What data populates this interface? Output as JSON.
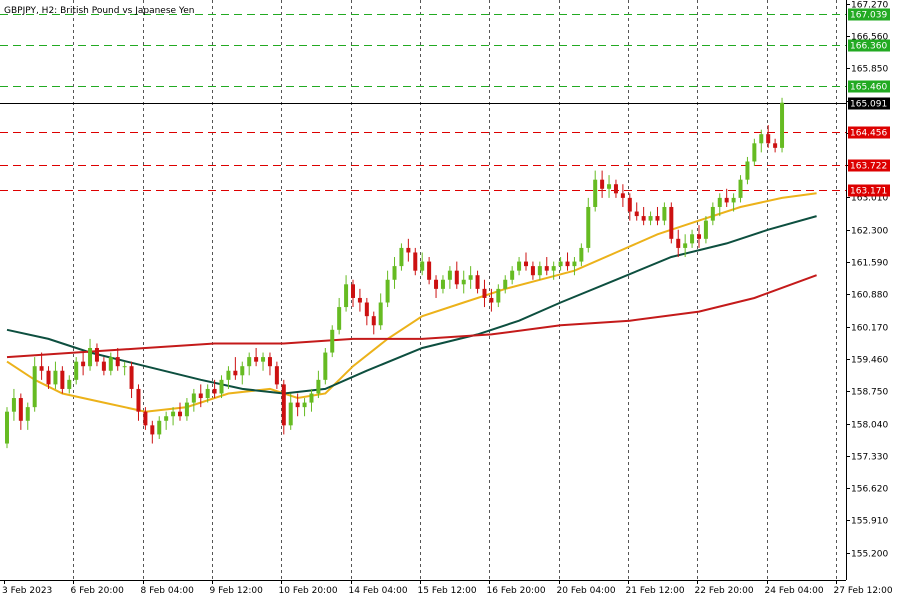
{
  "chart_data": {
    "type": "candlestick",
    "title": "GBPJPY, H2:  British Pound vs Japanese Yen",
    "y_axis": {
      "ticks": [
        "167.270",
        "166.560",
        "165.850",
        "165.140",
        "164.430",
        "163.720",
        "163.010",
        "162.300",
        "161.590",
        "160.880",
        "160.170",
        "159.460",
        "158.750",
        "158.040",
        "157.330",
        "156.620",
        "155.910",
        "155.200"
      ],
      "ylim": [
        154.6,
        167.35
      ]
    },
    "x_axis": {
      "ticks": [
        "3 Feb 2023",
        "6 Feb 20:00",
        "8 Feb 04:00",
        "9 Feb 12:00",
        "10 Feb 20:00",
        "14 Feb 04:00",
        "15 Feb 12:00",
        "16 Feb 20:00",
        "20 Feb 04:00",
        "21 Feb 12:00",
        "22 Feb 20:00",
        "24 Feb 04:00",
        "27 Feb 12:00"
      ]
    },
    "price_lines": [
      {
        "value": 167.039,
        "label": "167.039",
        "color": "#22aa22",
        "style": "dashed"
      },
      {
        "value": 166.36,
        "label": "166.360",
        "color": "#22aa22",
        "style": "dashed"
      },
      {
        "value": 165.46,
        "label": "165.460",
        "color": "#22aa22",
        "style": "dashed"
      },
      {
        "value": 165.091,
        "label": "165.091",
        "color": "#000000",
        "style": "solid"
      },
      {
        "value": 164.456,
        "label": "164.456",
        "color": "#dd0000",
        "style": "dashed"
      },
      {
        "value": 163.722,
        "label": "163.722",
        "color": "#dd0000",
        "style": "dashed"
      },
      {
        "value": 163.171,
        "label": "163.171",
        "color": "#dd0000",
        "style": "dashed"
      }
    ],
    "candles": [
      [
        157.6,
        158.4,
        157.5,
        158.3
      ],
      [
        158.3,
        158.8,
        158.1,
        158.6
      ],
      [
        158.6,
        158.7,
        157.9,
        158.1
      ],
      [
        158.1,
        158.5,
        157.9,
        158.4
      ],
      [
        158.4,
        159.5,
        158.3,
        159.3
      ],
      [
        159.3,
        159.6,
        159.0,
        159.2
      ],
      [
        159.2,
        159.3,
        158.8,
        158.9
      ],
      [
        158.9,
        159.4,
        158.8,
        159.2
      ],
      [
        159.2,
        159.3,
        158.7,
        158.8
      ],
      [
        158.8,
        159.1,
        158.7,
        159.0
      ],
      [
        159.0,
        159.5,
        158.9,
        159.4
      ],
      [
        159.4,
        159.6,
        159.1,
        159.3
      ],
      [
        159.3,
        159.9,
        159.2,
        159.7
      ],
      [
        159.7,
        159.8,
        159.3,
        159.4
      ],
      [
        159.4,
        159.5,
        159.1,
        159.2
      ],
      [
        159.2,
        159.6,
        159.1,
        159.5
      ],
      [
        159.5,
        159.7,
        159.2,
        159.3
      ],
      [
        159.3,
        159.4,
        159.1,
        159.3
      ],
      [
        159.3,
        159.4,
        158.6,
        158.8
      ],
      [
        158.8,
        158.9,
        158.1,
        158.3
      ],
      [
        158.3,
        158.4,
        157.9,
        158.0
      ],
      [
        158.0,
        158.1,
        157.6,
        157.8
      ],
      [
        157.8,
        158.2,
        157.7,
        158.1
      ],
      [
        158.1,
        158.3,
        157.9,
        158.2
      ],
      [
        158.2,
        158.4,
        158.0,
        158.3
      ],
      [
        158.3,
        158.5,
        158.1,
        158.2
      ],
      [
        158.2,
        158.6,
        158.1,
        158.5
      ],
      [
        158.5,
        158.8,
        158.3,
        158.7
      ],
      [
        158.7,
        158.9,
        158.4,
        158.6
      ],
      [
        158.6,
        158.9,
        158.5,
        158.8
      ],
      [
        158.8,
        159.0,
        158.6,
        158.7
      ],
      [
        158.7,
        159.1,
        158.6,
        159.0
      ],
      [
        159.0,
        159.3,
        158.8,
        159.2
      ],
      [
        159.2,
        159.5,
        159.0,
        159.1
      ],
      [
        159.1,
        159.4,
        158.9,
        159.3
      ],
      [
        159.3,
        159.6,
        159.1,
        159.5
      ],
      [
        159.5,
        159.7,
        159.3,
        159.4
      ],
      [
        159.4,
        159.6,
        159.2,
        159.5
      ],
      [
        159.5,
        159.6,
        159.1,
        159.3
      ],
      [
        159.3,
        159.4,
        158.8,
        158.9
      ],
      [
        158.9,
        159.0,
        157.8,
        158.0
      ],
      [
        158.0,
        158.7,
        157.9,
        158.5
      ],
      [
        158.5,
        158.7,
        158.2,
        158.4
      ],
      [
        158.4,
        158.6,
        158.2,
        158.5
      ],
      [
        158.5,
        158.8,
        158.3,
        158.7
      ],
      [
        158.7,
        159.2,
        158.6,
        159.0
      ],
      [
        159.0,
        159.7,
        158.9,
        159.6
      ],
      [
        159.6,
        160.2,
        159.5,
        160.1
      ],
      [
        160.1,
        160.8,
        160.0,
        160.6
      ],
      [
        160.6,
        161.3,
        160.5,
        161.1
      ],
      [
        161.1,
        161.2,
        160.6,
        160.8
      ],
      [
        160.8,
        161.0,
        160.5,
        160.7
      ],
      [
        160.7,
        160.8,
        160.2,
        160.4
      ],
      [
        160.4,
        160.5,
        160.0,
        160.2
      ],
      [
        160.2,
        160.9,
        160.1,
        160.7
      ],
      [
        160.7,
        161.4,
        160.6,
        161.2
      ],
      [
        161.2,
        161.7,
        161.0,
        161.5
      ],
      [
        161.5,
        162.0,
        161.4,
        161.9
      ],
      [
        161.9,
        162.1,
        161.6,
        161.8
      ],
      [
        161.8,
        161.9,
        161.3,
        161.4
      ],
      [
        161.4,
        161.8,
        161.3,
        161.6
      ],
      [
        161.6,
        161.7,
        161.1,
        161.2
      ],
      [
        161.2,
        161.3,
        160.8,
        161.0
      ],
      [
        161.0,
        161.3,
        160.9,
        161.2
      ],
      [
        161.2,
        161.5,
        161.0,
        161.4
      ],
      [
        161.4,
        161.6,
        161.0,
        161.1
      ],
      [
        161.1,
        161.4,
        160.9,
        161.2
      ],
      [
        161.2,
        161.5,
        161.0,
        161.3
      ],
      [
        161.3,
        161.4,
        160.9,
        161.0
      ],
      [
        161.0,
        161.2,
        160.6,
        160.8
      ],
      [
        160.8,
        161.0,
        160.5,
        160.7
      ],
      [
        160.7,
        161.1,
        160.6,
        161.0
      ],
      [
        161.0,
        161.3,
        160.9,
        161.2
      ],
      [
        161.2,
        161.5,
        161.1,
        161.4
      ],
      [
        161.4,
        161.7,
        161.3,
        161.6
      ],
      [
        161.6,
        161.8,
        161.4,
        161.5
      ],
      [
        161.5,
        161.6,
        161.2,
        161.3
      ],
      [
        161.3,
        161.6,
        161.2,
        161.5
      ],
      [
        161.5,
        161.7,
        161.3,
        161.4
      ],
      [
        161.4,
        161.6,
        161.2,
        161.5
      ],
      [
        161.5,
        161.7,
        161.4,
        161.6
      ],
      [
        161.6,
        161.8,
        161.4,
        161.5
      ],
      [
        161.5,
        161.7,
        161.3,
        161.6
      ],
      [
        161.6,
        162.0,
        161.5,
        161.9
      ],
      [
        161.9,
        163.0,
        161.8,
        162.8
      ],
      [
        162.8,
        163.6,
        162.7,
        163.4
      ],
      [
        163.4,
        163.6,
        163.0,
        163.2
      ],
      [
        163.2,
        163.5,
        163.0,
        163.3
      ],
      [
        163.3,
        163.4,
        163.0,
        163.1
      ],
      [
        163.1,
        163.3,
        162.8,
        163.0
      ],
      [
        163.0,
        163.1,
        162.5,
        162.7
      ],
      [
        162.7,
        162.9,
        162.5,
        162.6
      ],
      [
        162.6,
        162.8,
        162.4,
        162.5
      ],
      [
        162.5,
        162.7,
        162.4,
        162.6
      ],
      [
        162.6,
        162.8,
        162.4,
        162.5
      ],
      [
        162.5,
        162.9,
        162.4,
        162.8
      ],
      [
        162.8,
        162.9,
        162.0,
        162.1
      ],
      [
        162.1,
        162.3,
        161.7,
        161.9
      ],
      [
        161.9,
        162.2,
        161.7,
        162.0
      ],
      [
        162.0,
        162.3,
        161.9,
        162.2
      ],
      [
        162.2,
        162.4,
        161.9,
        162.1
      ],
      [
        162.1,
        162.6,
        162.0,
        162.5
      ],
      [
        162.5,
        162.9,
        162.4,
        162.8
      ],
      [
        162.8,
        163.1,
        162.6,
        163.0
      ],
      [
        163.0,
        163.2,
        162.8,
        162.9
      ],
      [
        162.9,
        163.1,
        162.7,
        163.0
      ],
      [
        163.0,
        163.5,
        162.9,
        163.4
      ],
      [
        163.4,
        163.9,
        163.3,
        163.8
      ],
      [
        163.8,
        164.3,
        163.7,
        164.2
      ],
      [
        164.2,
        164.5,
        164.0,
        164.4
      ],
      [
        164.4,
        164.6,
        164.1,
        164.2
      ],
      [
        164.2,
        164.3,
        164.0,
        164.1
      ],
      [
        164.1,
        165.2,
        164.0,
        165.091
      ]
    ],
    "moving_averages": [
      {
        "color": "#ecb21a",
        "values": [
          [
            0,
            159.4
          ],
          [
            4,
            159.0
          ],
          [
            8,
            158.7
          ],
          [
            14,
            158.5
          ],
          [
            20,
            158.3
          ],
          [
            26,
            158.4
          ],
          [
            32,
            158.7
          ],
          [
            38,
            158.8
          ],
          [
            42,
            158.6
          ],
          [
            46,
            158.7
          ],
          [
            50,
            159.3
          ],
          [
            55,
            159.9
          ],
          [
            60,
            160.4
          ],
          [
            66,
            160.7
          ],
          [
            72,
            161.0
          ],
          [
            77,
            161.2
          ],
          [
            82,
            161.4
          ],
          [
            88,
            161.8
          ],
          [
            94,
            162.2
          ],
          [
            100,
            162.5
          ],
          [
            106,
            162.8
          ],
          [
            112,
            163.0
          ],
          [
            117,
            163.1
          ]
        ]
      },
      {
        "color": "#0d4f3f",
        "values": [
          [
            0,
            160.1
          ],
          [
            6,
            159.9
          ],
          [
            12,
            159.6
          ],
          [
            20,
            159.3
          ],
          [
            28,
            159.0
          ],
          [
            34,
            158.8
          ],
          [
            40,
            158.7
          ],
          [
            46,
            158.8
          ],
          [
            52,
            159.2
          ],
          [
            60,
            159.7
          ],
          [
            68,
            160.0
          ],
          [
            74,
            160.3
          ],
          [
            80,
            160.7
          ],
          [
            88,
            161.2
          ],
          [
            96,
            161.7
          ],
          [
            104,
            162.0
          ],
          [
            110,
            162.3
          ],
          [
            117,
            162.6
          ]
        ]
      },
      {
        "color": "#c41a1a",
        "values": [
          [
            0,
            159.5
          ],
          [
            10,
            159.6
          ],
          [
            20,
            159.7
          ],
          [
            30,
            159.8
          ],
          [
            40,
            159.8
          ],
          [
            50,
            159.9
          ],
          [
            60,
            159.9
          ],
          [
            70,
            160.0
          ],
          [
            80,
            160.2
          ],
          [
            90,
            160.3
          ],
          [
            100,
            160.5
          ],
          [
            108,
            160.8
          ],
          [
            117,
            161.3
          ]
        ]
      }
    ],
    "bull_color": "#66bb22",
    "bear_color": "#cc1111"
  }
}
